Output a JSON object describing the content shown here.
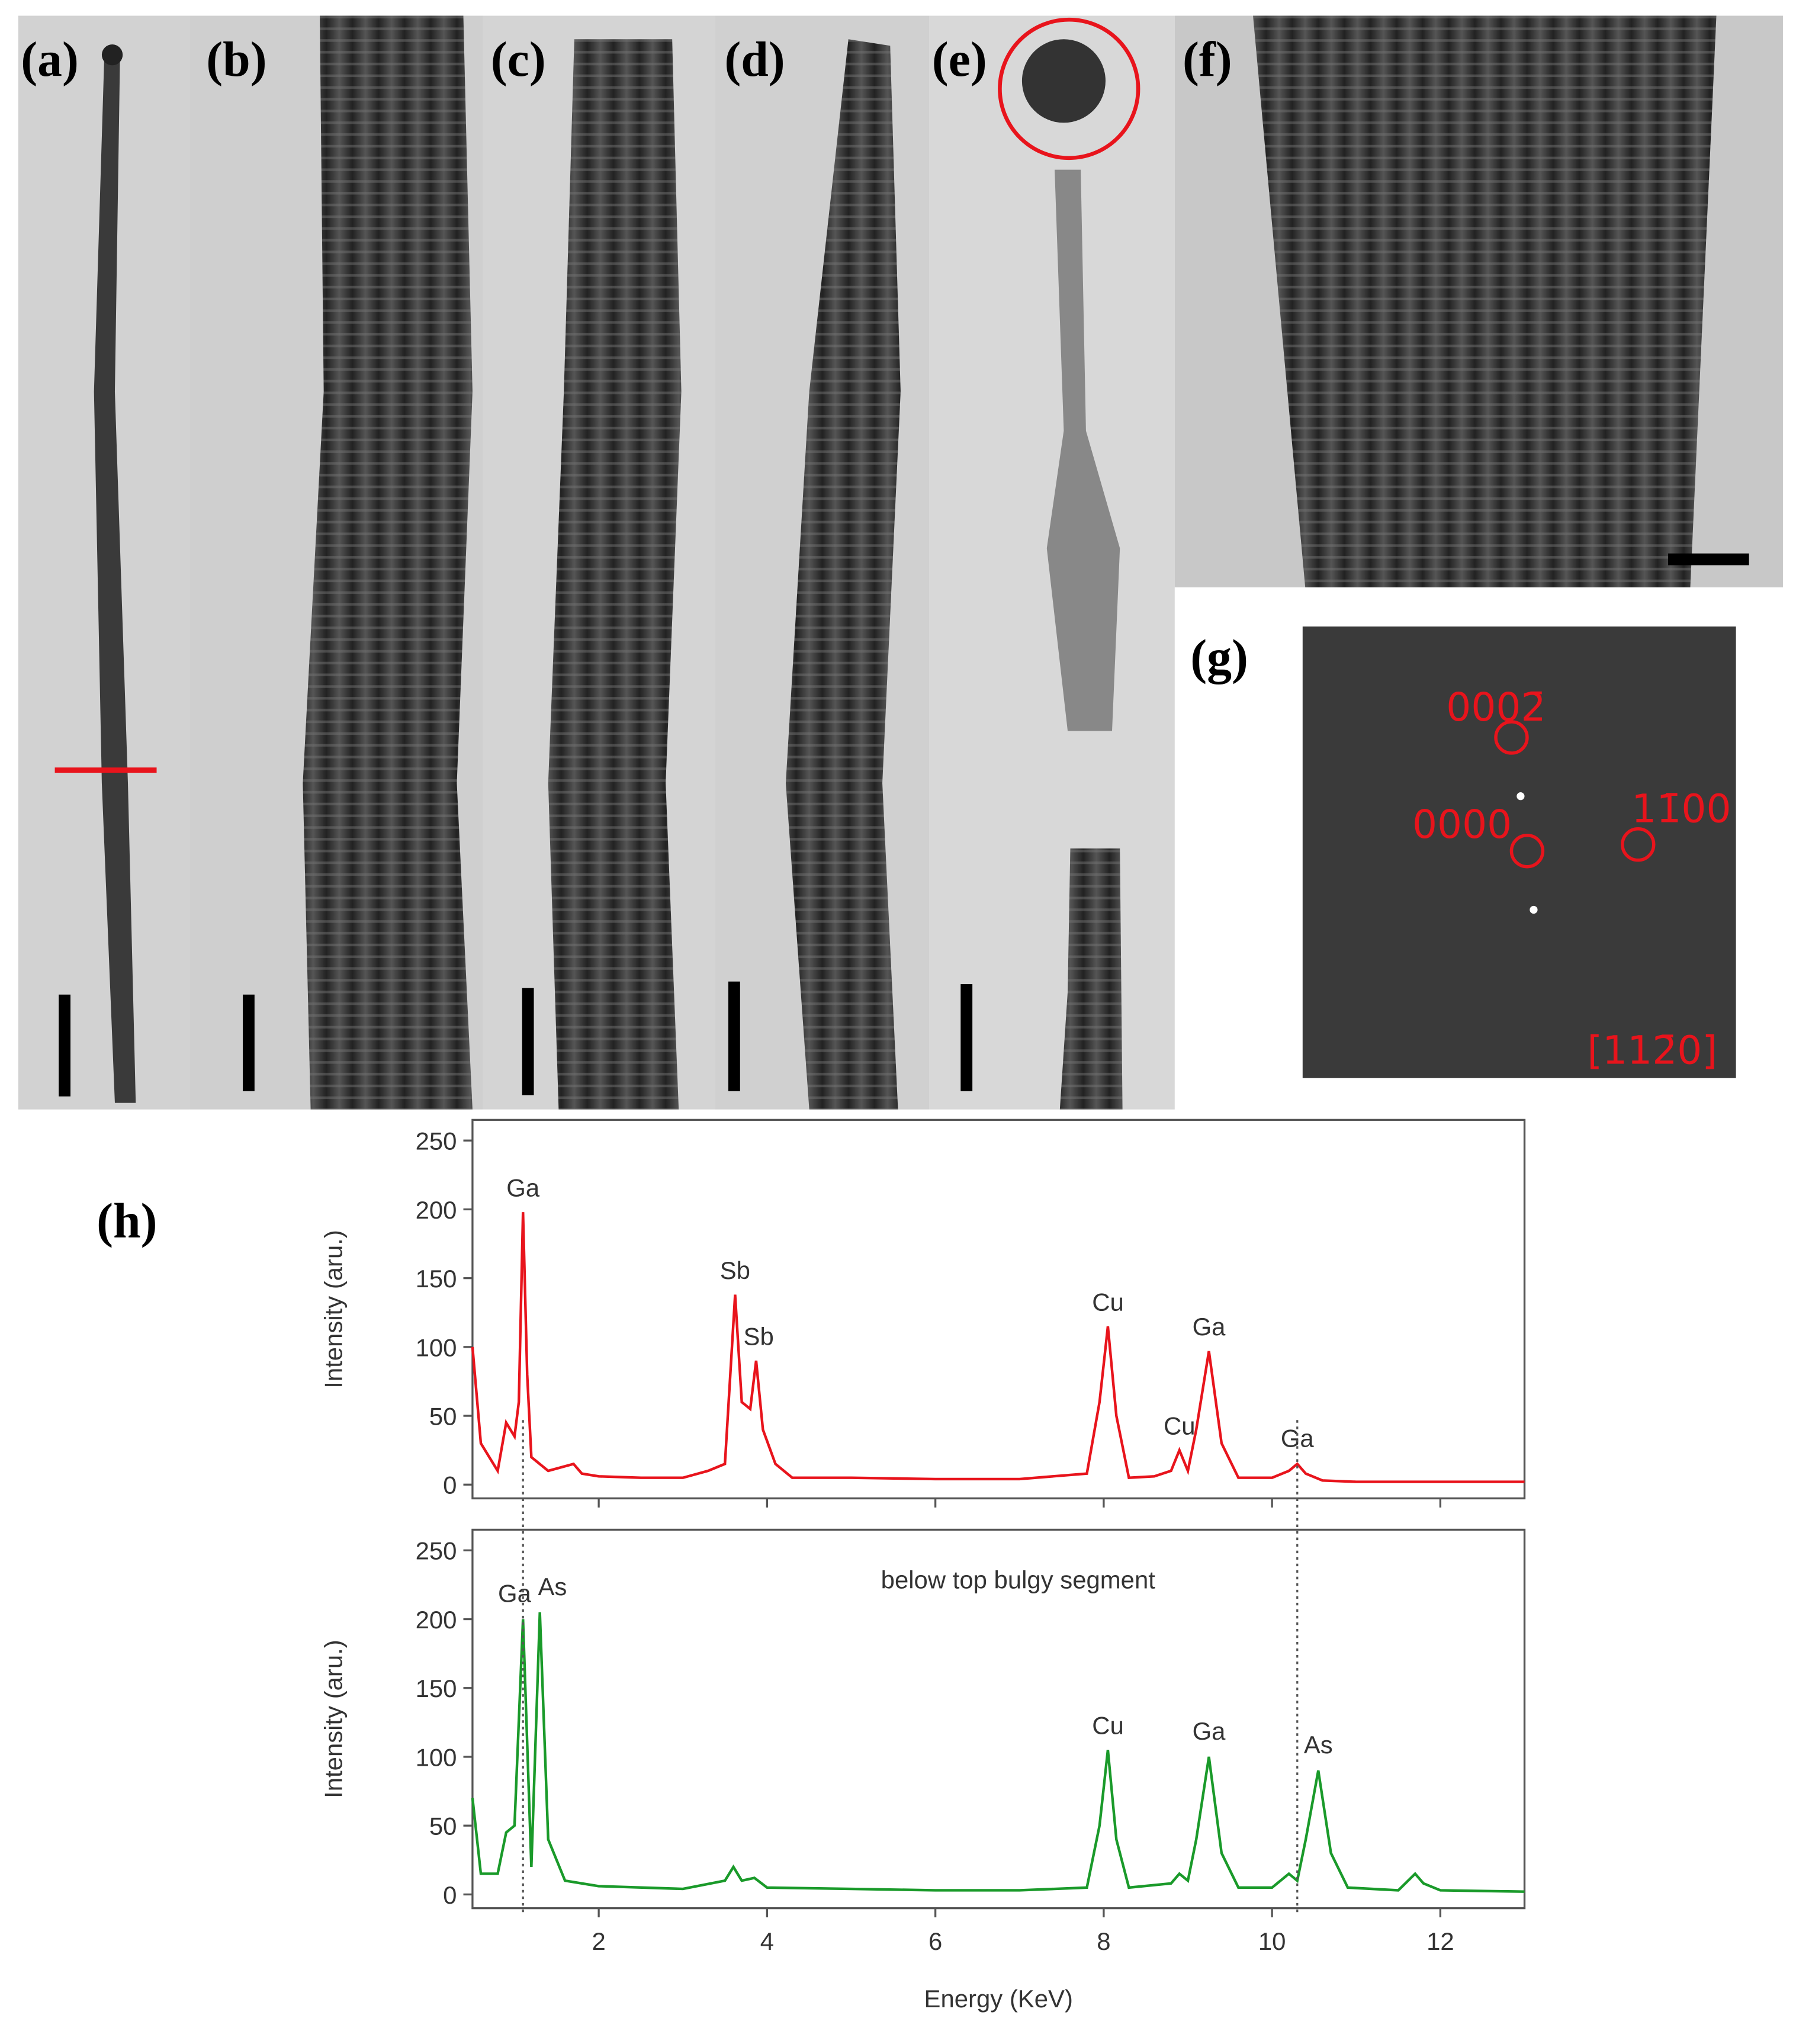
{
  "panels": {
    "labels": [
      "(a)",
      "(b)",
      "(c)",
      "(d)",
      "(e)",
      "(f)",
      "(g)",
      "(h)"
    ],
    "g_annotations": [
      "0002̄",
      "0000",
      "11̄00",
      "[112̄0]"
    ]
  },
  "chart_data": [
    {
      "type": "line",
      "ylabel": "Intensity (aru.)",
      "color": "#e8141c",
      "xlim": [
        0.5,
        13
      ],
      "ylim": [
        -10,
        265
      ],
      "yticks": [
        0,
        50,
        100,
        150,
        200,
        250
      ],
      "xticks": [
        2,
        4,
        6,
        8,
        10,
        12
      ],
      "reference_lines": [
        1.1,
        10.3
      ],
      "x": [
        0.5,
        0.6,
        0.8,
        0.9,
        1.0,
        1.05,
        1.1,
        1.15,
        1.2,
        1.4,
        1.7,
        1.8,
        2.0,
        2.5,
        3.0,
        3.3,
        3.5,
        3.62,
        3.7,
        3.8,
        3.87,
        3.95,
        4.1,
        4.3,
        5,
        6,
        7,
        7.8,
        7.95,
        8.05,
        8.15,
        8.3,
        8.6,
        8.8,
        8.9,
        9.0,
        9.1,
        9.25,
        9.4,
        9.6,
        10,
        10.2,
        10.3,
        10.4,
        10.6,
        11,
        12,
        13
      ],
      "values": [
        100,
        30,
        10,
        45,
        35,
        60,
        198,
        80,
        20,
        10,
        15,
        8,
        6,
        5,
        5,
        10,
        15,
        138,
        60,
        55,
        90,
        40,
        15,
        5,
        5,
        4,
        4,
        8,
        60,
        115,
        50,
        5,
        6,
        10,
        25,
        10,
        40,
        97,
        30,
        5,
        5,
        10,
        15,
        8,
        3,
        2,
        2,
        2
      ],
      "annotations": [
        {
          "text": "Ga",
          "x": 1.1,
          "y": 200
        },
        {
          "text": "Sb",
          "x": 3.62,
          "y": 140
        },
        {
          "text": "Sb",
          "x": 3.9,
          "y": 92
        },
        {
          "text": "Cu",
          "x": 8.05,
          "y": 117
        },
        {
          "text": "Cu",
          "x": 8.9,
          "y": 27
        },
        {
          "text": "Ga",
          "x": 9.25,
          "y": 99
        },
        {
          "text": "Ga",
          "x": 10.3,
          "y": 18
        }
      ]
    },
    {
      "type": "line",
      "ylabel": "Intensity (aru.)",
      "xlabel": "Energy (KeV)",
      "subtitle": "below top bulgy segment",
      "color": "#1a9a2a",
      "xlim": [
        0.5,
        13
      ],
      "ylim": [
        -10,
        265
      ],
      "yticks": [
        0,
        50,
        100,
        150,
        200,
        250
      ],
      "xticks": [
        2,
        4,
        6,
        8,
        10,
        12
      ],
      "x": [
        0.5,
        0.6,
        0.8,
        0.9,
        1.0,
        1.1,
        1.2,
        1.3,
        1.4,
        1.6,
        1.8,
        2.0,
        3.0,
        3.5,
        3.6,
        3.7,
        3.85,
        4.0,
        5,
        6,
        7,
        7.8,
        7.95,
        8.05,
        8.15,
        8.3,
        8.8,
        8.9,
        9.0,
        9.1,
        9.25,
        9.4,
        9.6,
        10.0,
        10.2,
        10.3,
        10.4,
        10.55,
        10.7,
        10.9,
        11.5,
        11.7,
        11.8,
        12,
        13
      ],
      "values": [
        70,
        15,
        15,
        45,
        50,
        200,
        20,
        205,
        40,
        10,
        8,
        6,
        4,
        10,
        20,
        10,
        12,
        5,
        4,
        3,
        3,
        5,
        50,
        105,
        40,
        5,
        8,
        15,
        10,
        40,
        100,
        30,
        5,
        5,
        15,
        10,
        40,
        90,
        30,
        5,
        3,
        15,
        8,
        3,
        2
      ],
      "annotations": [
        {
          "text": "Ga",
          "x": 1.0,
          "y": 203
        },
        {
          "text": "As",
          "x": 1.45,
          "y": 208
        },
        {
          "text": "Cu",
          "x": 8.05,
          "y": 107
        },
        {
          "text": "Ga",
          "x": 9.25,
          "y": 103
        },
        {
          "text": "As",
          "x": 10.55,
          "y": 93
        }
      ]
    }
  ]
}
